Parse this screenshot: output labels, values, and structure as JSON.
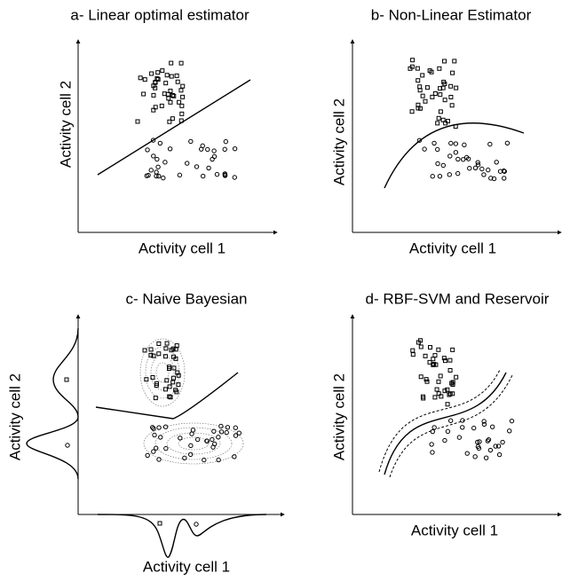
{
  "panels": [
    {
      "title": "a- Linear optimal estimator",
      "x_label": "Activity cell 1",
      "y_label": "Activity cell 2"
    },
    {
      "title": "b- Non-Linear Estimator",
      "x_label": "Activity cell 1",
      "y_label": "Activity cell 2"
    },
    {
      "title": "c- Naive Bayesian",
      "x_label": "Activity cell 1",
      "y_label": "Activity cell 2"
    },
    {
      "title": "d- RBF-SVM and Reservoir",
      "x_label": "Activity cell 1",
      "y_label": "Activity cell 2"
    }
  ]
}
